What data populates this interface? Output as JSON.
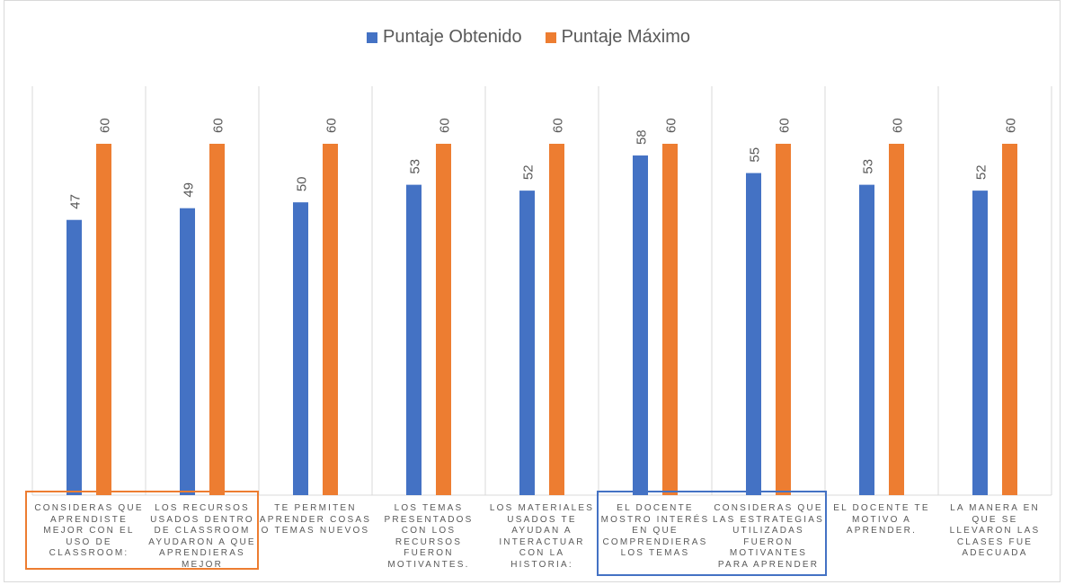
{
  "chart_data": {
    "type": "bar",
    "categories": [
      "CONSIDERAS QUE\nAPRENDISTE\nMEJOR CON EL\nUSO DE\nCLASSROOM:",
      "LOS RECURSOS\nUSADOS DENTRO\nDE CLASSROOM\nAYUDARON A QUE\nAPRENDIERAS\nMEJOR",
      "TE PERMITEN\nAPRENDER COSAS\nO TEMAS NUEVOS",
      "LOS TEMAS\nPRESENTADOS\nCON LOS\nRECURSOS\nFUERON\nMOTIVANTES.",
      "LOS MATERIALES\nUSADOS TE\nAYUDAN A\nINTERACTUAR\nCON LA\nHISTORIA:",
      "EL DOCENTE\nMOSTRO INTERÉS\nEN QUE\nCOMPRENDIERAS\nLOS TEMAS",
      "CONSIDERAS QUE\nLAS ESTRATEGIAS\nUTILIZADAS\nFUERON\nMOTIVANTES\nPARA APRENDER",
      "EL DOCENTE TE\nMOTIVO A\nAPRENDER.",
      "LA MANERA EN\nQUE SE\nLLEVARON LAS\nCLASES FUE\nADECUADA"
    ],
    "series": [
      {
        "name": "Puntaje Obtenido",
        "color": "#4472c4",
        "values": [
          47,
          49,
          50,
          53,
          52,
          58,
          55,
          53,
          52
        ]
      },
      {
        "name": "Puntaje Máximo",
        "color": "#ed7d31",
        "values": [
          60,
          60,
          60,
          60,
          60,
          60,
          60,
          60,
          60
        ]
      }
    ],
    "ylim": [
      0,
      60
    ],
    "grid": "vertical category separators",
    "legend_position": "top",
    "data_labels": true,
    "highlight_boxes": [
      {
        "color": "#ed7d31",
        "categories": [
          0,
          1
        ]
      },
      {
        "color": "#4472c4",
        "categories": [
          5,
          6
        ]
      }
    ]
  }
}
